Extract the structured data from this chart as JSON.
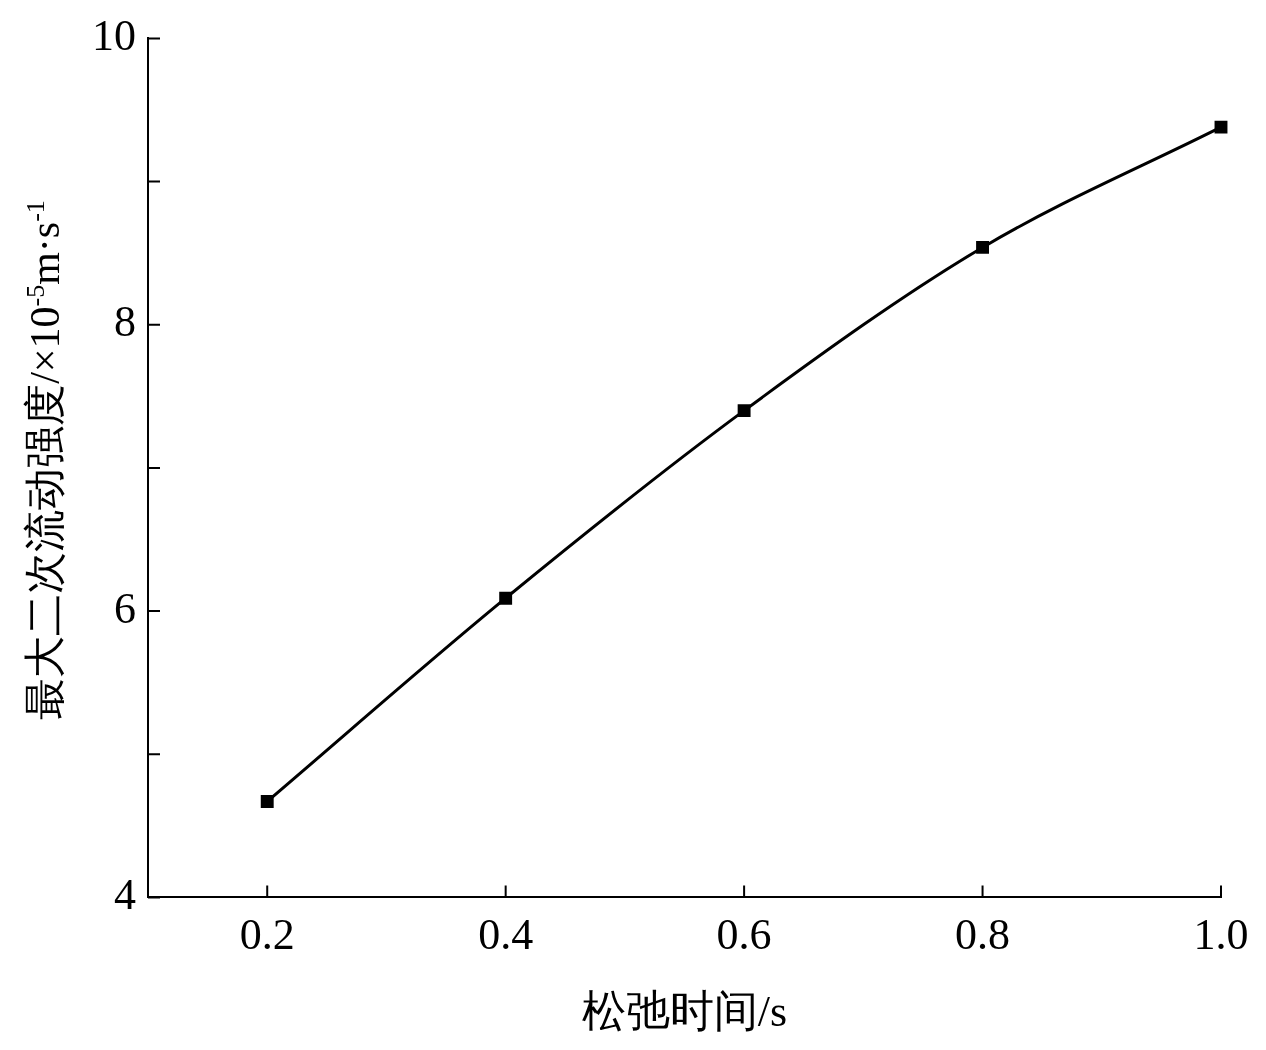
{
  "chart_data": {
    "type": "line",
    "xlabel": "松弛时间/s",
    "ylabel": "最大二次流动强度/×10$^{-5}$m·s$^{-1}$",
    "x": [
      0.2,
      0.4,
      0.6,
      0.8,
      1.0
    ],
    "series": [
      {
        "color": "#000000",
        "values": [
          4.67,
          6.09,
          7.4,
          8.54,
          9.38
        ]
      }
    ],
    "xlim": [
      0.1,
      1.0
    ],
    "xticks": [
      {
        "value": 0.2,
        "label": "0.2"
      },
      {
        "value": 0.4,
        "label": "0.4"
      },
      {
        "value": 0.6,
        "label": "0.6"
      },
      {
        "value": 0.8,
        "label": "0.8"
      },
      {
        "value": 1.0,
        "label": "1.0"
      }
    ],
    "ylim": [
      4,
      10
    ],
    "yticks": [
      4,
      {
        "value": 5,
        "label": null
      },
      6,
      {
        "value": 7,
        "label": null
      },
      8,
      {
        "value": 9,
        "label": null
      },
      10
    ],
    "marker": "square",
    "line_style": "solid",
    "grid": false,
    "legend": false
  }
}
